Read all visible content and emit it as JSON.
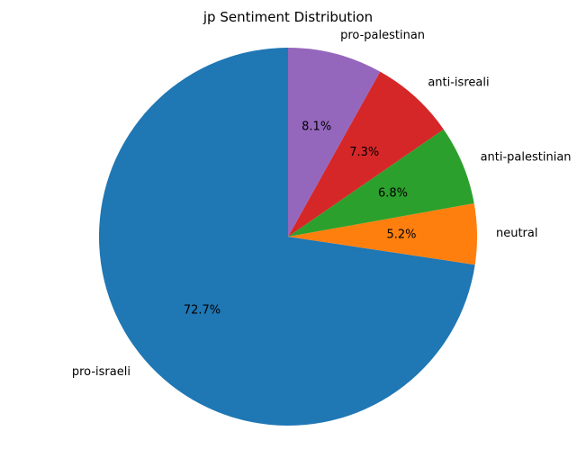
{
  "chart_data": {
    "type": "pie",
    "title": "jp Sentiment Distribution",
    "start_angle_deg": 90,
    "direction": "counterclockwise",
    "slices": [
      {
        "label": "pro-israeli",
        "value": 72.7,
        "pct_label": "72.7%",
        "color": "#1f77b4"
      },
      {
        "label": "neutral",
        "value": 5.2,
        "pct_label": "5.2%",
        "color": "#ff7f0e"
      },
      {
        "label": "anti-palestinian",
        "value": 6.8,
        "pct_label": "6.8%",
        "color": "#2ca02c"
      },
      {
        "label": "anti-isreali",
        "value": 7.3,
        "pct_label": "7.3%",
        "color": "#d62728"
      },
      {
        "label": "pro-palestinan",
        "value": 8.1,
        "pct_label": "8.1%",
        "color": "#9467bd"
      }
    ]
  }
}
